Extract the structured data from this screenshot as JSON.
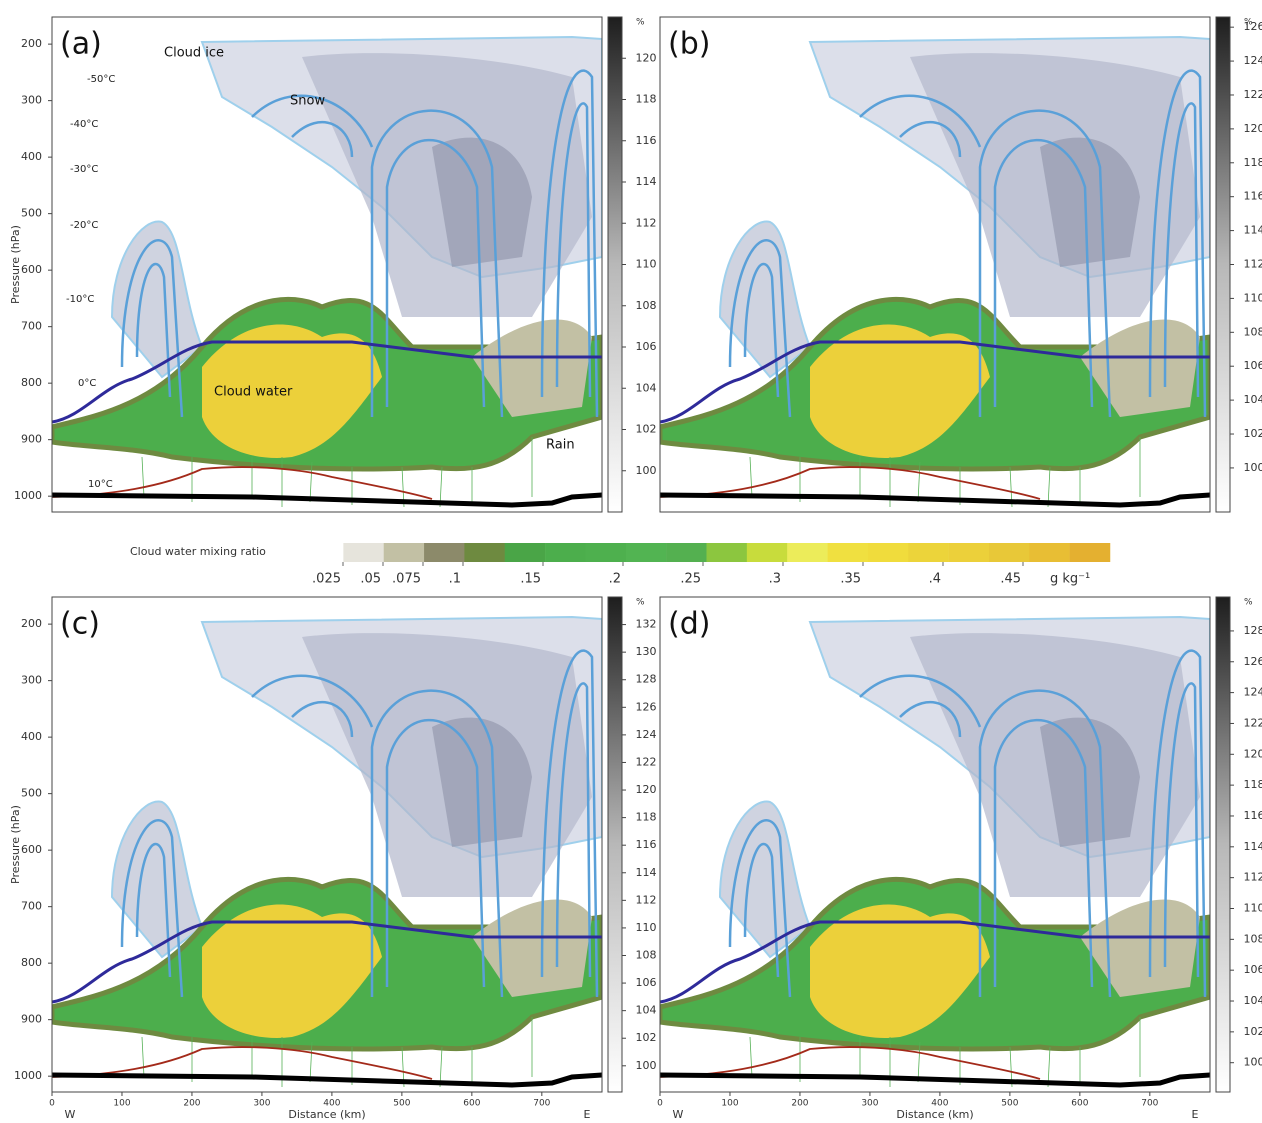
{
  "chart_data": [
    {
      "type": "contour",
      "label": "(a)",
      "ylabel": "Pressure (hPa)",
      "ylim": [
        1028,
        152
      ],
      "yticks": [
        200,
        300,
        400,
        500,
        600,
        700,
        800,
        900,
        1000
      ],
      "annotations": [
        "Cloud ice",
        "Snow",
        "Cloud water",
        "Rain",
        "-50°C",
        "-40°C",
        "-30°C",
        "-20°C",
        "-10°C",
        "0°C",
        "10°C"
      ],
      "colorbar": {
        "unit": "%",
        "lim": [
          98,
          122
        ],
        "ticks": [
          100,
          102,
          104,
          106,
          108,
          110,
          112,
          114,
          116,
          118,
          120
        ]
      }
    },
    {
      "type": "contour",
      "label": "(b)",
      "colorbar": {
        "unit": "%",
        "lim": [
          97.4,
          126.6
        ],
        "ticks": [
          100,
          102,
          104,
          106,
          108,
          110,
          112,
          114,
          116,
          118,
          120,
          122,
          124,
          126
        ]
      }
    },
    {
      "type": "contour",
      "label": "(c)",
      "ylabel": "Pressure (hPa)",
      "ylim": [
        1028,
        152
      ],
      "yticks": [
        200,
        300,
        400,
        500,
        600,
        700,
        800,
        900,
        1000
      ],
      "xlabel": "Distance (km)",
      "xlim": [
        0,
        786
      ],
      "xticks": [
        0,
        100,
        200,
        300,
        400,
        500,
        600,
        700
      ],
      "west": "W",
      "east": "E",
      "colorbar": {
        "unit": "%",
        "lim": [
          98.1,
          134
        ],
        "ticks": [
          100,
          102,
          104,
          106,
          108,
          110,
          112,
          114,
          116,
          118,
          120,
          122,
          124,
          126,
          128,
          130,
          132
        ]
      }
    },
    {
      "type": "contour",
      "label": "(d)",
      "xlabel": "Distance (km)",
      "xlim": [
        0,
        786
      ],
      "xticks": [
        0,
        100,
        200,
        300,
        400,
        500,
        600,
        700
      ],
      "west": "W",
      "east": "E",
      "colorbar": {
        "unit": "%",
        "lim": [
          98.1,
          130.2
        ],
        "ticks": [
          100,
          102,
          104,
          106,
          108,
          110,
          112,
          114,
          116,
          118,
          120,
          122,
          124,
          126,
          128
        ]
      }
    }
  ],
  "colorbar": {
    "title": "Cloud water mixing ratio",
    "unit": "g kg⁻¹",
    "colors": [
      "#ffffff",
      "#e6e4dc",
      "#c2c0a4",
      "#8c8a6a",
      "#6e8a40",
      "#4aa547",
      "#4cae4c",
      "#4eb04e",
      "#52b452",
      "#54b050",
      "#8cc63f",
      "#c8dc3c",
      "#ecec5a",
      "#f0e040",
      "#f0dc3c",
      "#ecd43a",
      "#ecd03a",
      "#e8c838",
      "#e8be34",
      "#e4b030"
    ],
    "ticks": [
      {
        "value": 0.025,
        "label": ".025"
      },
      {
        "value": 0.05,
        "label": ".05"
      },
      {
        "value": 0.075,
        "label": ".075"
      },
      {
        "value": 0.1,
        "label": ".1"
      },
      {
        "value": 0.15,
        "label": ".15"
      },
      {
        "value": 0.2,
        "label": ".2"
      },
      {
        "value": 0.25,
        "label": ".25"
      },
      {
        "value": 0.3,
        "label": ".3"
      },
      {
        "value": 0.35,
        "label": ".35"
      },
      {
        "value": 0.4,
        "label": ".4"
      },
      {
        "value": 0.45,
        "label": ".45"
      }
    ]
  }
}
